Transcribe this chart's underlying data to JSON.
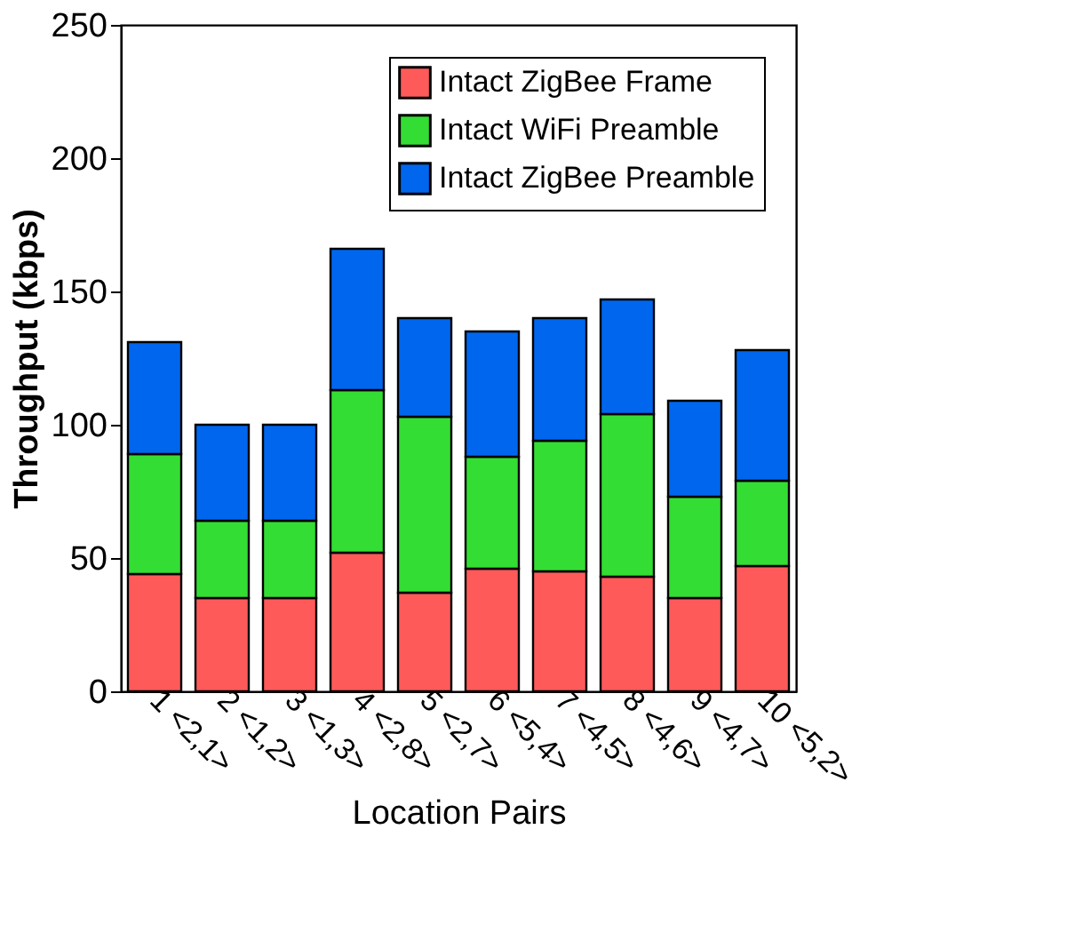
{
  "chart_data": {
    "type": "bar",
    "stacked": true,
    "xlabel": "Location Pairs",
    "ylabel": "Throughput (kbps)",
    "categories": [
      "1 <2,1>",
      "2 <1,2>",
      "3 <1,3>",
      "4 <2,8>",
      "5 <2,7>",
      "6 <5,4>",
      "7 <4,5>",
      "8 <4,6>",
      "9 <4,7>",
      "10 <5,2>"
    ],
    "series": [
      {
        "name": "Intact ZigBee Frame",
        "color": "#ff5a5a",
        "values": [
          44,
          35,
          35,
          52,
          37,
          46,
          45,
          43,
          35,
          47
        ]
      },
      {
        "name": "Intact WiFi Preamble",
        "color": "#33dd33",
        "values": [
          45,
          29,
          29,
          61,
          66,
          42,
          49,
          61,
          38,
          32
        ]
      },
      {
        "name": "Intact ZigBee Preamble",
        "color": "#0066ee",
        "values": [
          42,
          36,
          36,
          53,
          37,
          47,
          46,
          43,
          36,
          49
        ]
      }
    ],
    "ylim": [
      0,
      250
    ],
    "yticks": [
      0,
      50,
      100,
      150,
      200,
      250
    ],
    "grid": false,
    "legend": "top right"
  }
}
